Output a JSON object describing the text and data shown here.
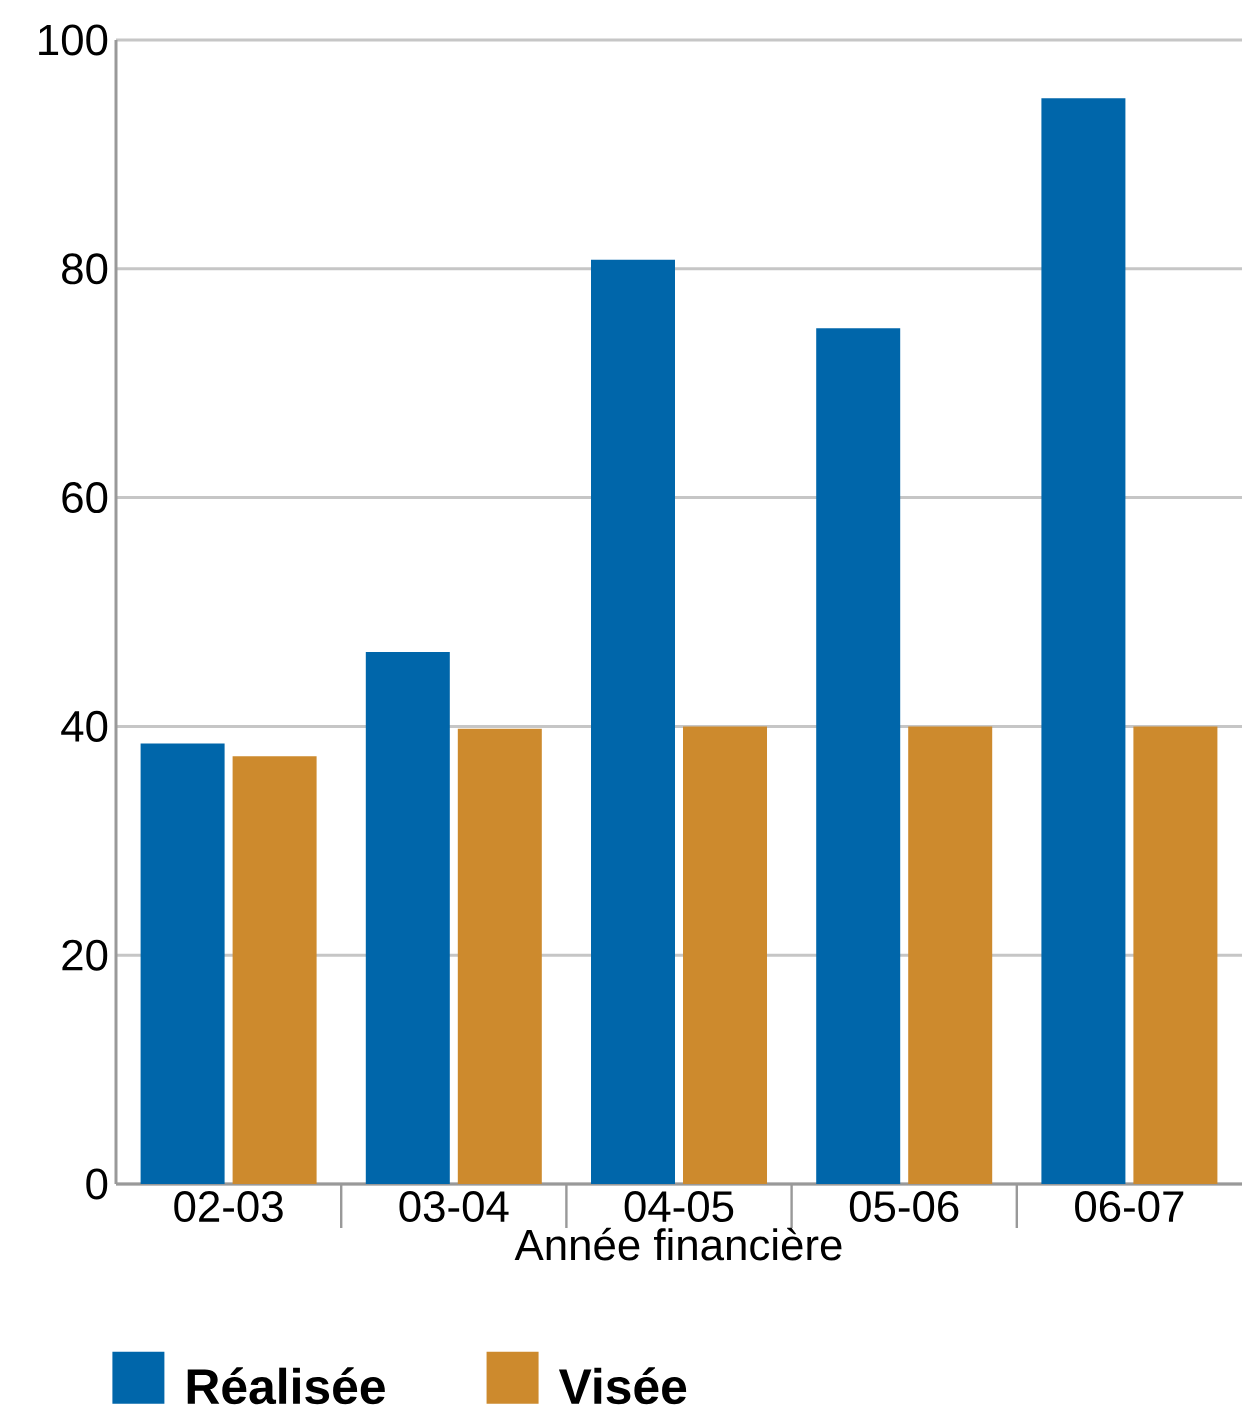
{
  "chart_data": {
    "type": "bar",
    "xlabel": "Année financière",
    "categories": [
      "02-03",
      "03-04",
      "04-05",
      "05-06",
      "06-07"
    ],
    "series": [
      {
        "name": "Réalisée",
        "color": "#0066aa",
        "values": [
          38.5,
          46.5,
          80.8,
          74.8,
          94.9
        ]
      },
      {
        "name": "Visée",
        "color": "#cd8a2d",
        "values": [
          37.4,
          39.8,
          40,
          40,
          40
        ]
      }
    ],
    "ylim": [
      0,
      100
    ],
    "yticks": [
      0,
      20,
      40,
      60,
      80,
      100
    ],
    "grid": "y",
    "legend": "bottom"
  }
}
